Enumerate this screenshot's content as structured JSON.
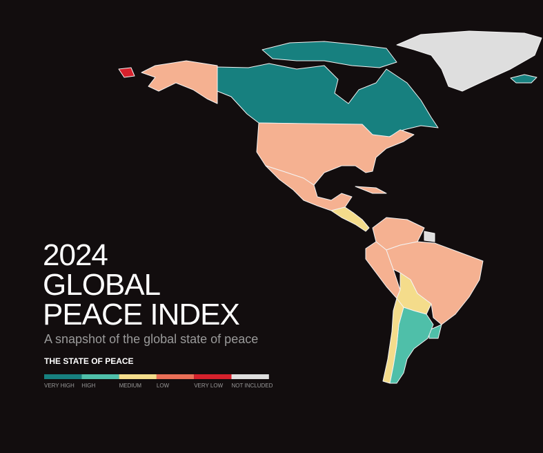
{
  "header": {
    "title_lines": [
      "2024",
      "GLOBAL",
      "PEACE INDEX"
    ],
    "subtitle": "A snapshot of the global state of peace"
  },
  "legend": {
    "title": "THE STATE OF PEACE",
    "items": [
      {
        "label": "VERY HIGH",
        "color": "#17807f"
      },
      {
        "label": "HIGH",
        "color": "#4fbfa9"
      },
      {
        "label": "MEDIUM",
        "color": "#f4dc8b"
      },
      {
        "label": "LOW",
        "color": "#ea6f57"
      },
      {
        "label": "VERY LOW",
        "color": "#d6212c"
      },
      {
        "label": "NOT INCLUDED",
        "color": "#dedede"
      }
    ]
  }
}
